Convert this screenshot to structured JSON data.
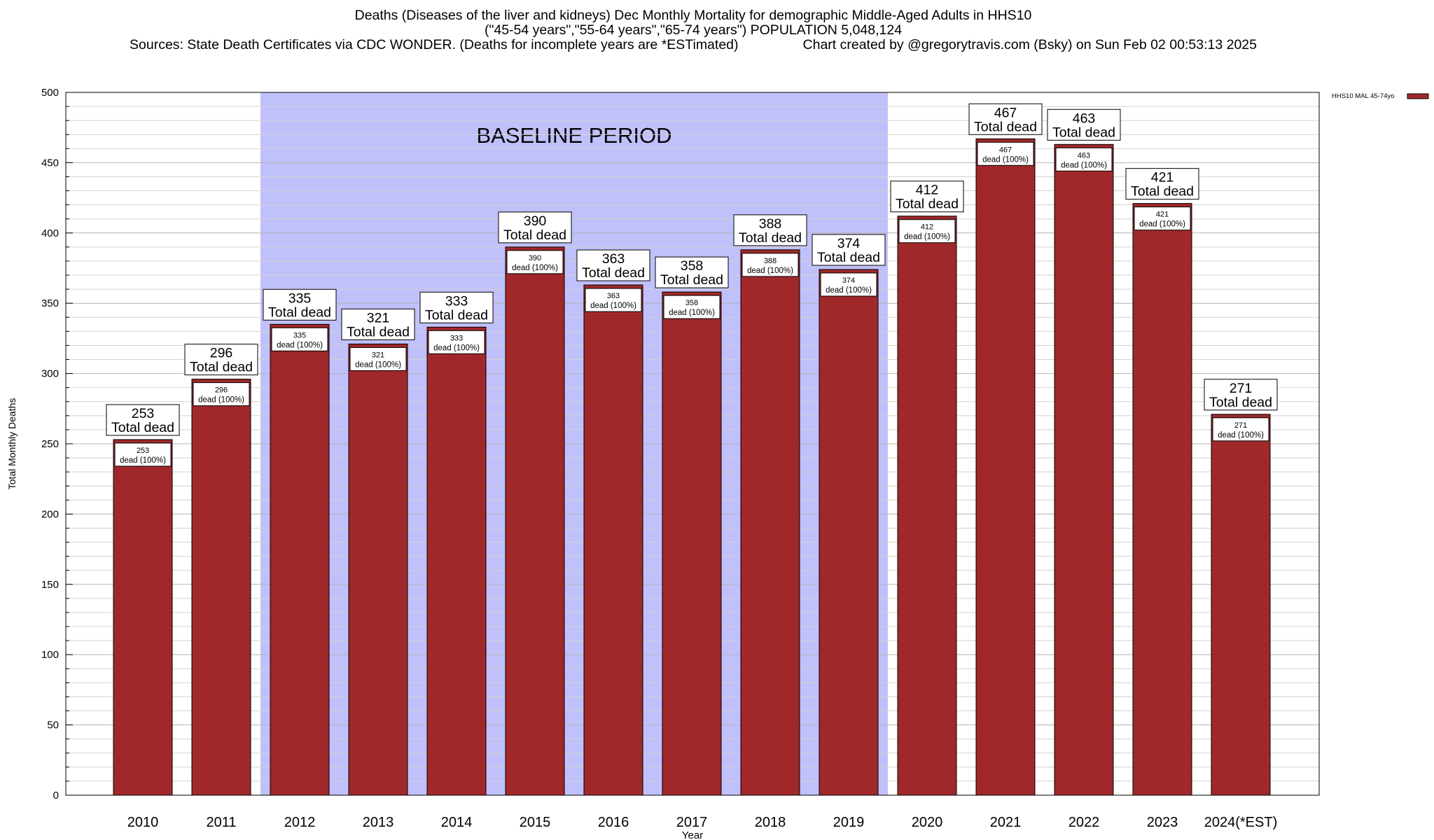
{
  "chart_data": {
    "type": "bar",
    "title": "Deaths (Diseases of the liver and kidneys) Dec Monthly Mortality for demographic Middle-Aged Adults in HHS10",
    "subtitle": "(\"45-54 years\",\"55-64 years\",\"65-74 years\") POPULATION 5,048,124",
    "sources": "Sources: State Death Certificates via CDC WONDER. (Deaths for incomplete years are *ESTimated)",
    "credit": "Chart created by @gregorytravis.com (Bsky) on Sun Feb 02 00:53:13 2025",
    "xlabel": "Year",
    "ylabel": "Total Monthly Deaths",
    "ylim": [
      0,
      500
    ],
    "yticks": [
      0,
      50,
      100,
      150,
      200,
      250,
      300,
      350,
      400,
      450,
      500
    ],
    "categories": [
      "2010",
      "2011",
      "2012",
      "2013",
      "2014",
      "2015",
      "2016",
      "2017",
      "2018",
      "2019",
      "2020",
      "2021",
      "2022",
      "2023",
      "2024(*EST)"
    ],
    "series": [
      {
        "name": "HHS10 MAL 45-74yo",
        "color": "#a0282a",
        "values": [
          253,
          296,
          335,
          321,
          333,
          390,
          363,
          358,
          388,
          374,
          412,
          467,
          463,
          421,
          271
        ]
      }
    ],
    "total_label": "Total dead",
    "inner_label": "dead (100%)",
    "baseline": {
      "label": "BASELINE PERIOD",
      "start": "2012",
      "end": "2019",
      "color": "#c0c0fa"
    },
    "legend": "top-right",
    "grid": true
  }
}
